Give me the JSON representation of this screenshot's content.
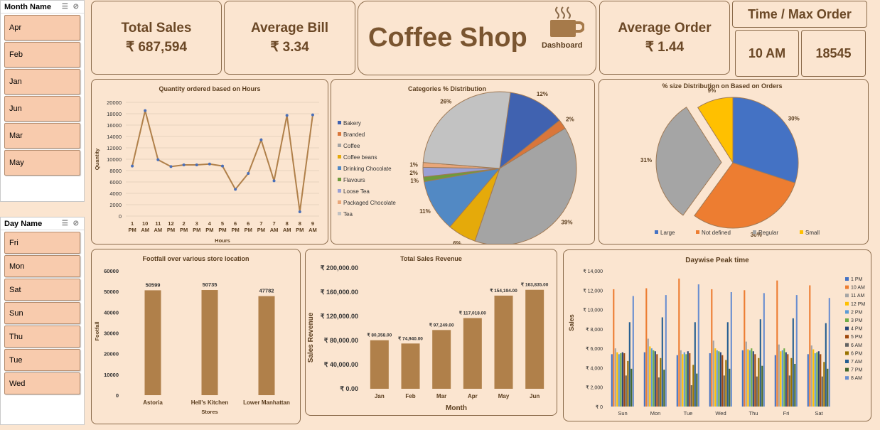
{
  "month_slicer": {
    "title": "Month Name",
    "items": [
      "Apr",
      "Feb",
      "Jan",
      "Jun",
      "Mar",
      "May"
    ]
  },
  "day_slicer": {
    "title": "Day Name",
    "items": [
      "Fri",
      "Mon",
      "Sat",
      "Sun",
      "Thu",
      "Tue",
      "Wed"
    ]
  },
  "kpis": {
    "total_sales": {
      "label": "Total Sales",
      "value": "₹ 687,594"
    },
    "average_bill": {
      "label": "Average Bill",
      "value": "₹ 3.34"
    },
    "average_order": {
      "label": "Average Order",
      "value": "₹ 1.44"
    },
    "time_max": {
      "label": "Time / Max Order",
      "time": "10 AM",
      "orders": "18545"
    }
  },
  "header": {
    "title": "Coffee Shop",
    "subtitle": "Dashboard"
  },
  "colors": {
    "brown": "#b0804a",
    "accent": "#6b4826"
  },
  "chart_data": [
    {
      "type": "line",
      "title": "Quantity ordered based on Hours",
      "xlabel": "Hours",
      "ylabel": "Quantity",
      "x": [
        "1 PM",
        "10 AM",
        "11 AM",
        "12 PM",
        "2 PM",
        "3 PM",
        "4 PM",
        "5 PM",
        "6 PM",
        "6 PM",
        "7 PM",
        "7 AM",
        "8 AM",
        "8 PM",
        "9 AM"
      ],
      "x_ticks": [
        [
          "1",
          "PM"
        ],
        [
          "10",
          "AM"
        ],
        [
          "11",
          "AM"
        ],
        [
          "12",
          "PM"
        ],
        [
          "2",
          "PM"
        ],
        [
          "3",
          "PM"
        ],
        [
          "4",
          "PM"
        ],
        [
          "5",
          "PM"
        ],
        [
          "6",
          "PM"
        ],
        [
          "6",
          "PM"
        ],
        [
          "7",
          "PM"
        ],
        [
          "7",
          "AM"
        ],
        [
          "8",
          "AM"
        ],
        [
          "8",
          "PM"
        ],
        [
          "9",
          "AM"
        ]
      ],
      "values": [
        8800,
        18545,
        9900,
        8700,
        9000,
        9000,
        9150,
        8800,
        4700,
        7500,
        13400,
        6200,
        17700,
        750,
        17800
      ],
      "ylim": [
        0,
        20000
      ],
      "yticks": [
        0,
        2000,
        4000,
        6000,
        8000,
        10000,
        12000,
        14000,
        16000,
        18000,
        20000
      ]
    },
    {
      "type": "pie",
      "title": "Categories % Distribution",
      "categories": [
        "Bakery",
        "Branded",
        "Coffee",
        "Coffee beans",
        "Drinking Chocolate",
        "Flavours",
        "Loose Tea",
        "Packaged Chocolate",
        "Tea"
      ],
      "values": [
        12,
        2,
        39,
        6,
        11,
        1,
        2,
        1,
        26
      ],
      "labels": [
        "12%",
        "2%",
        "39%",
        "6%",
        "11%",
        "1%",
        "2%",
        "1%",
        "26%"
      ],
      "colors": [
        "#4062b0",
        "#d9763a",
        "#a4a4a4",
        "#e5aa0a",
        "#5289c4",
        "#6e9a3c",
        "#9aa0d4",
        "#e9a77a",
        "#c2c2c2"
      ]
    },
    {
      "type": "pie",
      "title": "% size Distribution on Based on  Orders",
      "categories": [
        "Large",
        "Not defined",
        "Regular",
        "Small"
      ],
      "values": [
        30,
        30,
        31,
        9
      ],
      "labels": [
        "30%",
        "30%",
        "31%",
        "9%"
      ],
      "colors": [
        "#4472c4",
        "#ed7d31",
        "#a5a5a5",
        "#ffc000"
      ]
    },
    {
      "type": "bar",
      "title": "Footfall over various store location",
      "xlabel": "Stores",
      "ylabel": "Footfall",
      "categories": [
        "Astoria",
        "Hell's Kitchen",
        "Lower Manhattan"
      ],
      "values": [
        50599,
        50735,
        47782
      ],
      "labels": [
        "50599",
        "50735",
        "47782"
      ],
      "ylim": [
        0,
        60000
      ],
      "yticks": [
        0,
        10000,
        20000,
        30000,
        40000,
        50000,
        60000
      ]
    },
    {
      "type": "bar",
      "title": "Total Sales Revenue",
      "xlabel": "Month",
      "ylabel": "Sales Revenue",
      "categories": [
        "Jan",
        "Feb",
        "Mar",
        "Apr",
        "May",
        "Jun"
      ],
      "values": [
        80358,
        74940,
        97249,
        117018,
        154194,
        163835
      ],
      "labels": [
        "₹ 80,358.00",
        "₹ 74,940.00",
        "₹ 97,249.00",
        "₹ 117,018.00",
        "₹ 154,194.00",
        "₹ 163,835.00"
      ],
      "ylim": [
        0,
        200000
      ],
      "yticks": [
        0,
        40000,
        80000,
        120000,
        160000,
        200000
      ],
      "ytick_labels": [
        "₹ 0.00",
        "₹ 40,000.00",
        "₹ 80,000.00",
        "₹ 120,000.00",
        "₹ 160,000.00",
        "₹ 200,000.00"
      ]
    },
    {
      "type": "bar",
      "title": "Daywise Peak time",
      "ylabel": "Sales",
      "categories": [
        "Sun",
        "Mon",
        "Tue",
        "Wed",
        "Thu",
        "Fri",
        "Sat"
      ],
      "ylim": [
        0,
        14000
      ],
      "yticks": [
        0,
        2000,
        4000,
        6000,
        8000,
        10000,
        12000,
        14000
      ],
      "ytick_labels": [
        "₹ 0",
        "₹ 2,000",
        "₹ 4,000",
        "₹ 6,000",
        "₹ 8,000",
        "₹ 10,000",
        "₹ 12,000",
        "₹ 14,000"
      ],
      "series": [
        {
          "name": "1 PM",
          "color": "#4472c4",
          "values": [
            5400,
            5600,
            5300,
            5500,
            5800,
            5300,
            5400
          ]
        },
        {
          "name": "10 AM",
          "color": "#ed7d31",
          "values": [
            12100,
            12200,
            13200,
            12100,
            12000,
            13000,
            12500
          ]
        },
        {
          "name": "11 AM",
          "color": "#a5a5a5",
          "values": [
            6000,
            7000,
            5800,
            6800,
            6700,
            6400,
            6300
          ]
        },
        {
          "name": "12 PM",
          "color": "#ffc000",
          "values": [
            5600,
            6200,
            5400,
            6000,
            5900,
            5700,
            5900
          ]
        },
        {
          "name": "2 PM",
          "color": "#5b9bd5",
          "values": [
            5400,
            6000,
            5600,
            5800,
            5800,
            5800,
            5500
          ]
        },
        {
          "name": "3 PM",
          "color": "#70ad47",
          "values": [
            5500,
            5800,
            5400,
            5700,
            6000,
            6000,
            5600
          ]
        },
        {
          "name": "4 PM",
          "color": "#264478",
          "values": [
            5600,
            5700,
            5700,
            5600,
            5700,
            5600,
            5700
          ]
        },
        {
          "name": "5 PM",
          "color": "#9e480e",
          "values": [
            5500,
            5400,
            5500,
            5300,
            5400,
            5400,
            5400
          ]
        },
        {
          "name": "6 AM",
          "color": "#636363",
          "values": [
            3200,
            3000,
            2200,
            3200,
            3100,
            3200,
            3100
          ]
        },
        {
          "name": "6 PM",
          "color": "#997300",
          "values": [
            4700,
            5000,
            4300,
            4800,
            5000,
            5000,
            4600
          ]
        },
        {
          "name": "7 AM",
          "color": "#255e91",
          "values": [
            8700,
            9200,
            8700,
            8700,
            9000,
            9100,
            8600
          ]
        },
        {
          "name": "7 PM",
          "color": "#43682b",
          "values": [
            3900,
            3800,
            3400,
            3900,
            4200,
            4400,
            3900
          ]
        },
        {
          "name": "8 AM",
          "color": "#698ed0",
          "values": [
            11400,
            11500,
            12600,
            11800,
            11700,
            11500,
            11200
          ]
        }
      ]
    }
  ]
}
